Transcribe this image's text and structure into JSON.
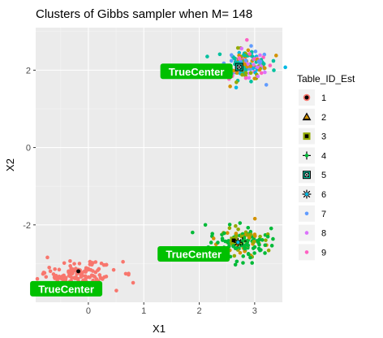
{
  "chart_data": {
    "type": "scatter",
    "title": "Clusters of Gibbs sampler when M= 148",
    "xlabel": "X1",
    "ylabel": "X2",
    "xlim": [
      -0.95,
      3.5
    ],
    "ylim": [
      -4.0,
      3.1
    ],
    "x_ticks": [
      0,
      1,
      2,
      3
    ],
    "y_ticks": [
      -2,
      0,
      2
    ],
    "grid": true,
    "background": "#ebebeb",
    "legend": {
      "title": "Table_ID_Est",
      "placement": "right",
      "entries": [
        {
          "label": "1",
          "shape": "circle-ring",
          "color": "#f8766d"
        },
        {
          "label": "2",
          "shape": "triangle",
          "color": "#d39200"
        },
        {
          "label": "3",
          "shape": "square",
          "color": "#93aa00"
        },
        {
          "label": "4",
          "shape": "plus-star",
          "color": "#00ba38"
        },
        {
          "label": "5",
          "shape": "square-cross",
          "color": "#00c19f"
        },
        {
          "label": "6",
          "shape": "asterisk",
          "color": "#00b9e3"
        },
        {
          "label": "7",
          "shape": "point",
          "color": "#619cff"
        },
        {
          "label": "8",
          "shape": "point",
          "color": "#db72fb"
        },
        {
          "label": "9",
          "shape": "point",
          "color": "#ff61c3"
        }
      ]
    },
    "clusters": [
      {
        "center": [
          -0.2,
          -3.3
        ],
        "spread": [
          0.35,
          0.18
        ],
        "count": 140,
        "colors": [
          "#f8766d"
        ],
        "center_marker": {
          "x": -0.18,
          "y": -3.2,
          "label": "1"
        },
        "label_pos": [
          -0.4,
          -3.65
        ]
      },
      {
        "center": [
          2.75,
          -2.45
        ],
        "spread": [
          0.25,
          0.22
        ],
        "count": 140,
        "colors": [
          "#00ba38",
          "#00ba38",
          "#00ba38",
          "#93aa00",
          "#d39200"
        ],
        "center_marker": {
          "x": 2.7,
          "y": -2.45,
          "label": "6"
        },
        "extra_markers": [
          {
            "x": 2.62,
            "y": -2.4,
            "label": "3"
          },
          {
            "x": 2.78,
            "y": -2.42,
            "label": "4"
          }
        ],
        "label_pos": [
          1.9,
          -2.75
        ]
      },
      {
        "center": [
          2.8,
          2.15
        ],
        "spread": [
          0.23,
          0.2
        ],
        "count": 180,
        "colors": [
          "#00c19f",
          "#00c19f",
          "#00b9e3",
          "#619cff",
          "#db72fb",
          "#ff61c3",
          "#d39200",
          "#93aa00"
        ],
        "center_marker": {
          "x": 2.72,
          "y": 2.08,
          "label": "5"
        },
        "label_pos": [
          1.95,
          1.97
        ]
      }
    ],
    "annotations": [
      "TrueCenter",
      "TrueCenter",
      "TrueCenter"
    ],
    "annotation_color": "#00c000"
  }
}
